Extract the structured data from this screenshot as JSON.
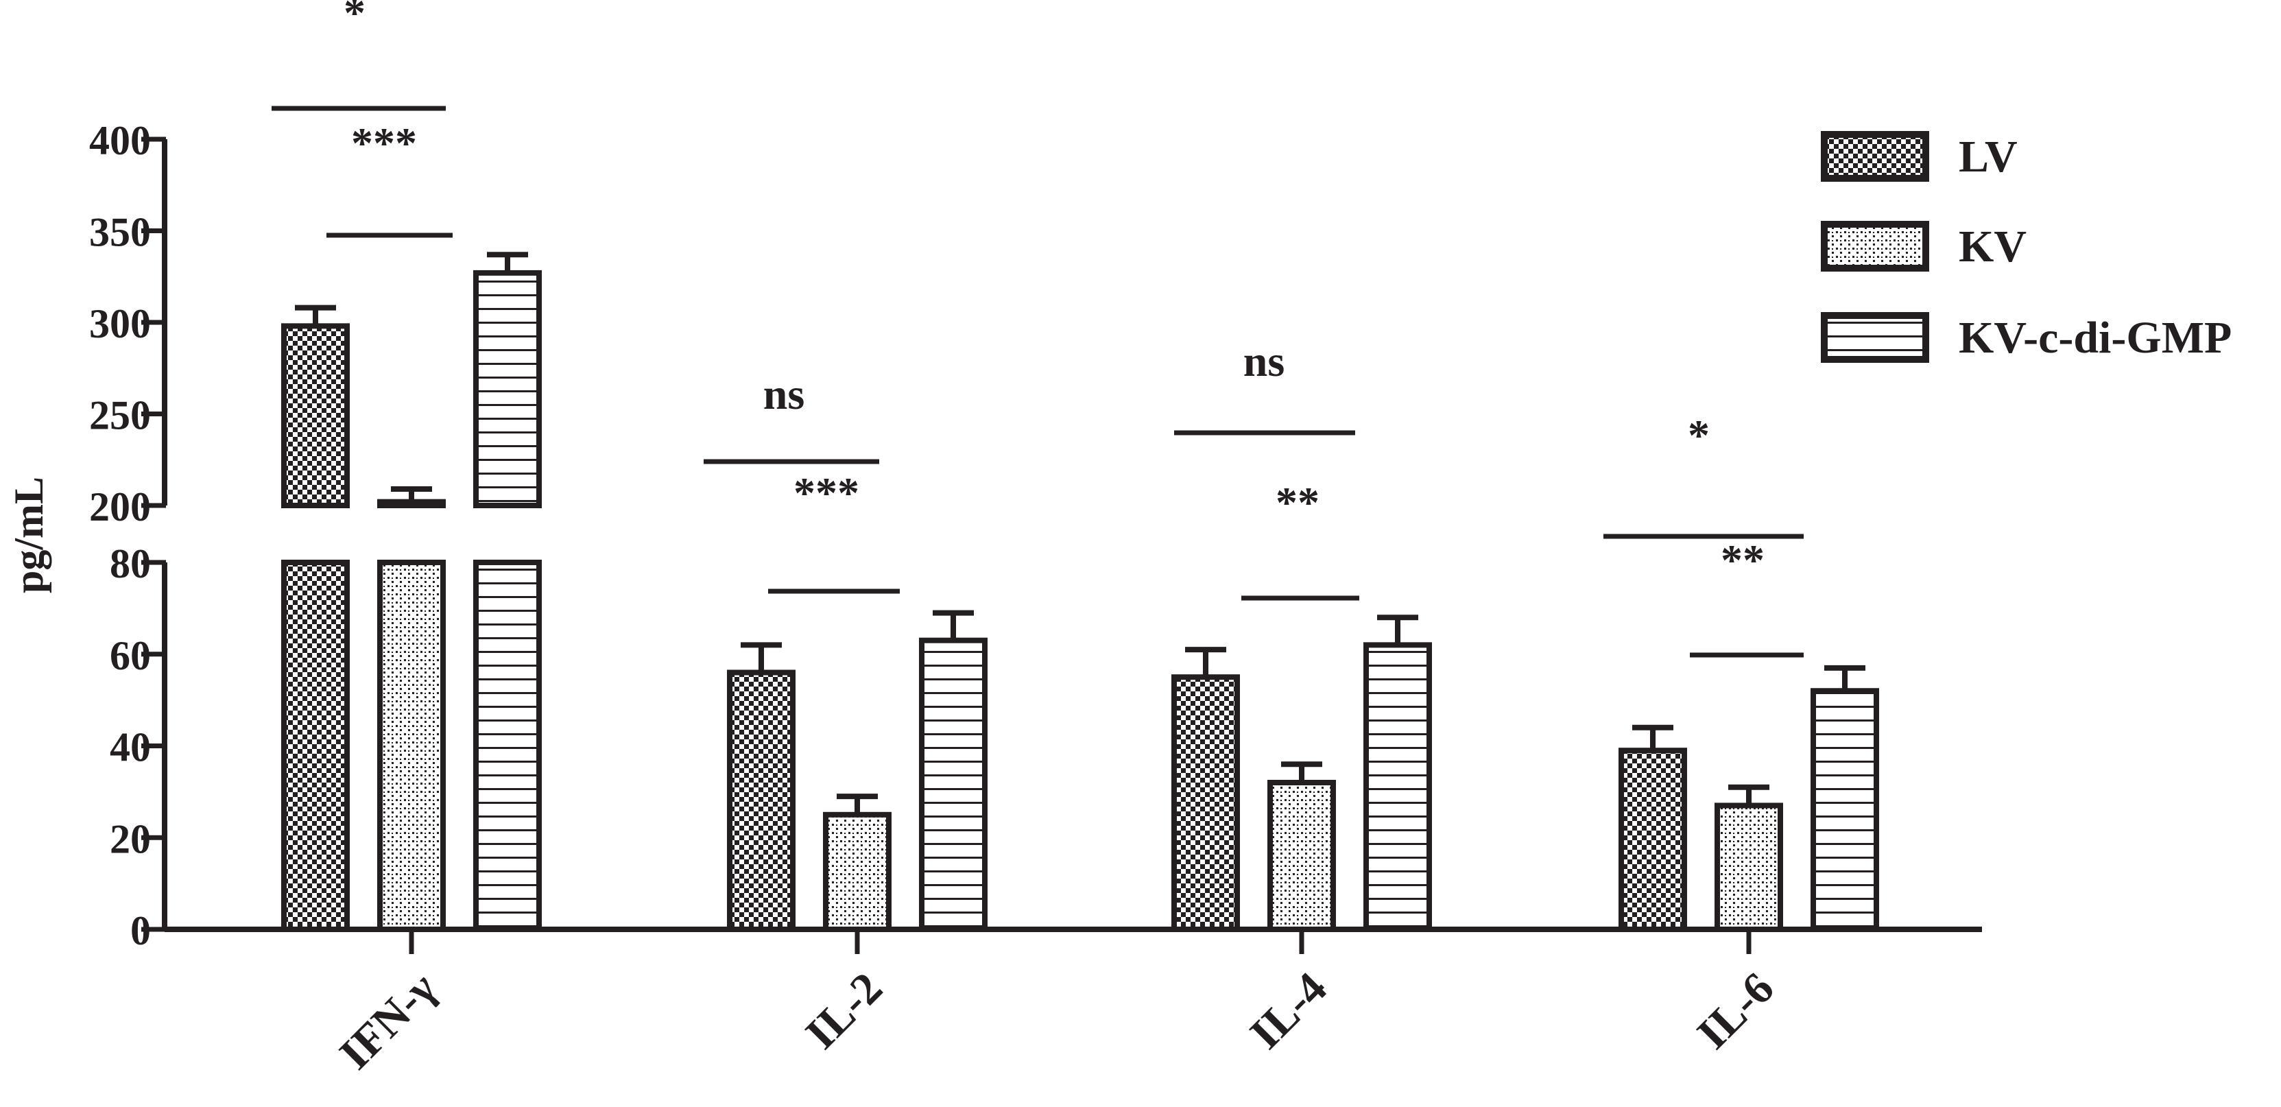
{
  "chart_data": {
    "type": "bar",
    "ylabel": "pg/mL",
    "categories": [
      "IFN-γ",
      "IL-2",
      "IL-4",
      "IL-6"
    ],
    "y_axis": {
      "broken": true,
      "lower_segment": {
        "range": [
          0,
          80
        ],
        "ticks": [
          "0",
          "20",
          "40",
          "60",
          "80"
        ]
      },
      "upper_segment": {
        "range": [
          200,
          400
        ],
        "ticks": [
          "200",
          "250",
          "300",
          "350",
          "400"
        ]
      }
    },
    "series": [
      {
        "name": "LV",
        "pattern": "checker",
        "values": [
          298,
          56,
          55,
          39
        ],
        "errors": [
          10,
          6,
          6,
          5
        ]
      },
      {
        "name": "KV",
        "pattern": "dots",
        "values": [
          202,
          25,
          32,
          27
        ],
        "errors": [
          7,
          4,
          4,
          4
        ]
      },
      {
        "name": "KV-c-di-GMP",
        "pattern": "horizontal-lines",
        "values": [
          327,
          63,
          62,
          52
        ],
        "errors": [
          10,
          6,
          6,
          5
        ]
      }
    ],
    "annotations": [
      {
        "category": "IFN-γ",
        "pair": [
          "LV",
          "KV-c-di-GMP"
        ],
        "label": "*"
      },
      {
        "category": "IFN-γ",
        "pair": [
          "KV",
          "KV-c-di-GMP"
        ],
        "label": "***"
      },
      {
        "category": "IL-2",
        "pair": [
          "LV",
          "KV-c-di-GMP"
        ],
        "label": "ns"
      },
      {
        "category": "IL-2",
        "pair": [
          "KV",
          "KV-c-di-GMP"
        ],
        "label": "***"
      },
      {
        "category": "IL-4",
        "pair": [
          "LV",
          "KV-c-di-GMP"
        ],
        "label": "ns"
      },
      {
        "category": "IL-4",
        "pair": [
          "KV",
          "KV-c-di-GMP"
        ],
        "label": "**"
      },
      {
        "category": "IL-6",
        "pair": [
          "LV",
          "KV-c-di-GMP"
        ],
        "label": "*"
      },
      {
        "category": "IL-6",
        "pair": [
          "KV",
          "KV-c-di-GMP"
        ],
        "label": "**"
      }
    ],
    "legend_position": "top-right",
    "grid": false,
    "colors": {
      "ink": "#231f20",
      "background": "#ffffff"
    }
  }
}
